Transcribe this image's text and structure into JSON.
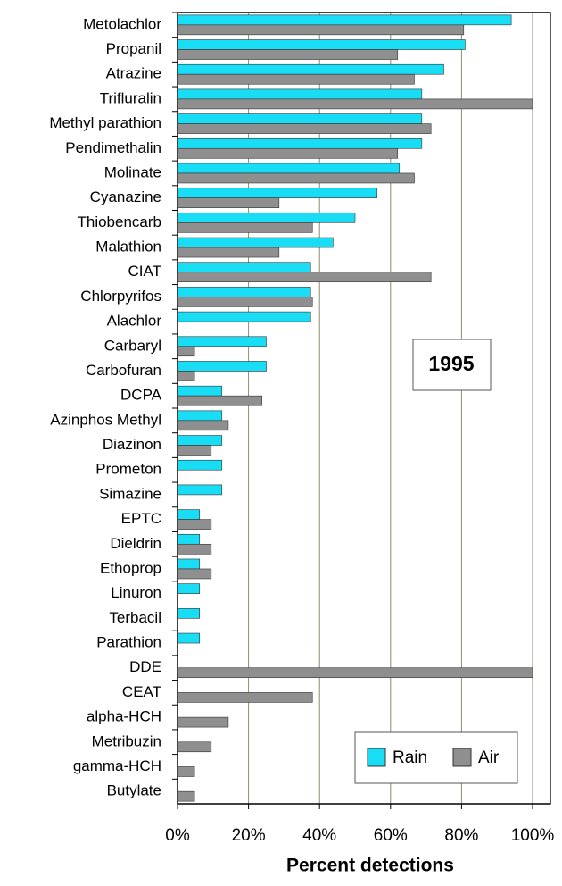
{
  "chart_data": {
    "type": "barh",
    "annotation": "1995",
    "x_label": "Percent detections",
    "categories": [
      "Metolachlor",
      "Propanil",
      "Atrazine",
      "Trifluralin",
      "Methyl parathion",
      "Pendimethalin",
      "Molinate",
      "Cyanazine",
      "Thiobencarb",
      "Malathion",
      "CIAT",
      "Chlorpyrifos",
      "Alachlor",
      "Carbaryl",
      "Carbofuran",
      "DCPA",
      "Azinphos Methyl",
      "Diazinon",
      "Prometon",
      "Simazine",
      "EPTC",
      "Dieldrin",
      "Ethoprop",
      "Linuron",
      "Terbacil",
      "Parathion",
      "DDE",
      "CEAT",
      "alpha-HCH",
      "Metribuzin",
      "gamma-HCH",
      "Butylate"
    ],
    "series": [
      {
        "name": "Rain",
        "color": "#19dcf5",
        "values": [
          94,
          81,
          75,
          68.8,
          68.8,
          68.8,
          62.5,
          56.2,
          50,
          43.8,
          37.5,
          37.5,
          37.5,
          25,
          25,
          12.5,
          12.5,
          12.5,
          12.5,
          12.5,
          6.2,
          6.2,
          6.2,
          6.2,
          6.2,
          6.2,
          null,
          null,
          null,
          null,
          null,
          null
        ]
      },
      {
        "name": "Air",
        "color": "#8f8f8f",
        "values": [
          80.6,
          62,
          66.7,
          100,
          71.4,
          62,
          66.7,
          28.6,
          38,
          28.6,
          71.4,
          38,
          null,
          4.8,
          4.8,
          23.8,
          14.3,
          9.5,
          null,
          null,
          9.5,
          9.5,
          9.5,
          null,
          null,
          null,
          100,
          38,
          14.3,
          9.5,
          4.8,
          4.8
        ]
      }
    ],
    "xlim": [
      0,
      105
    ],
    "xticks": [
      {
        "value": 0,
        "label": "0%"
      },
      {
        "value": 20,
        "label": "20%"
      },
      {
        "value": 40,
        "label": "40%"
      },
      {
        "value": 60,
        "label": "60%"
      },
      {
        "value": 80,
        "label": "80%"
      },
      {
        "value": 100,
        "label": "100%"
      }
    ],
    "grid": true,
    "legend": "lower right"
  }
}
